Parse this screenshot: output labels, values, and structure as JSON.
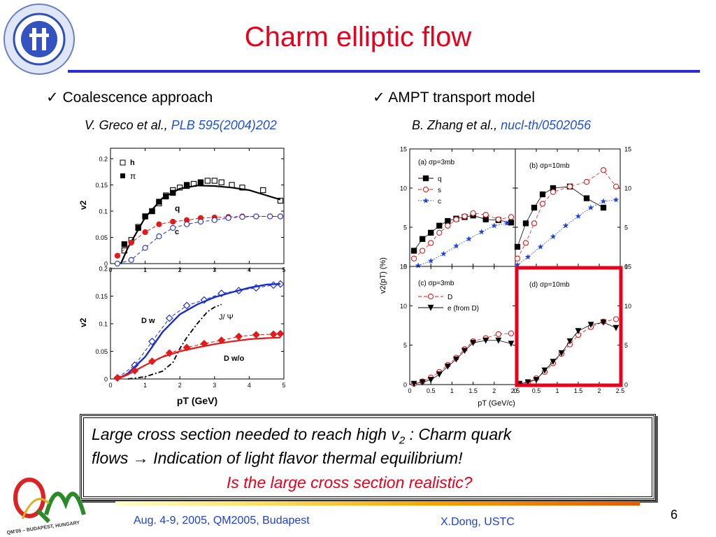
{
  "slide": {
    "title": "Charm elliptic flow",
    "page_number": "6",
    "left_bullet": "Coalescence approach",
    "left_cite_authors": "V. Greco et al., ",
    "left_cite_ref": "PLB 595(2004)202",
    "right_bullet": "AMPT transport model",
    "right_cite_authors": "B. Zhang et al., ",
    "right_cite_ref": "nucl-th/0502056",
    "conclusion_line1_a": "Large cross section needed to reach high v",
    "conclusion_line1_sub": "2",
    "conclusion_line1_b": " : Charm quark",
    "conclusion_line2": "flows → Indication of light flavor thermal equilibrium!",
    "conclusion_line3": "Is the large cross section realistic?",
    "footer_left": "Aug. 4-9, 2005, QM2005, Budapest",
    "footer_right": "X.Dong,  USTC",
    "qm_logo_text": "QM'05 – BUDAPEST, HUNGARY",
    "colors": {
      "title": "#e8001c",
      "rule": "#2b2bd8",
      "cite_link": "#1f4fe0",
      "highlight_box": "#e8001c",
      "footer_text": "#1f3fd0"
    }
  },
  "chart_data": [
    {
      "type": "line",
      "panel": "left-top",
      "xlabel": "",
      "ylabel": "v2",
      "xlim": [
        0,
        5
      ],
      "ylim": [
        0,
        0.22
      ],
      "x_ticks": [
        0,
        1,
        2,
        3,
        4,
        5
      ],
      "y_ticks": [
        0,
        0.05,
        0.1,
        0.15,
        0.2
      ],
      "legend": [
        "h",
        "π"
      ],
      "annotations": [
        "q",
        "c"
      ],
      "series": [
        {
          "name": "h",
          "style": "open-square",
          "x": [
            0.4,
            0.6,
            0.8,
            1.0,
            1.2,
            1.4,
            1.6,
            1.8,
            2.0,
            2.2,
            2.4,
            2.6,
            2.8,
            3.0,
            3.2,
            3.5,
            3.8,
            4.4,
            4.9
          ],
          "y": [
            0.025,
            0.045,
            0.07,
            0.09,
            0.1,
            0.115,
            0.13,
            0.14,
            0.145,
            0.148,
            0.152,
            0.155,
            0.158,
            0.158,
            0.155,
            0.15,
            0.145,
            0.14,
            0.12
          ]
        },
        {
          "name": "π",
          "style": "filled-square",
          "x": [
            0.4,
            0.8,
            1.0,
            1.2,
            1.4,
            1.6,
            1.8,
            2.2,
            2.6
          ],
          "y": [
            0.037,
            0.068,
            0.09,
            0.1,
            0.118,
            0.128,
            0.135,
            0.15,
            0.155
          ]
        },
        {
          "name": "q",
          "style": "solid-black",
          "x": [
            0.3,
            0.5,
            1.0,
            1.5,
            2.0,
            2.5,
            3.0,
            3.5,
            4.0,
            4.5,
            4.9
          ],
          "y": [
            0.0,
            0.03,
            0.088,
            0.125,
            0.143,
            0.149,
            0.148,
            0.145,
            0.14,
            0.13,
            0.122
          ]
        },
        {
          "name": "",
          "style": "red-dashed-filled-circle",
          "x": [
            0.2,
            0.6,
            1.0,
            1.4,
            1.8,
            2.2,
            2.6,
            3.0,
            3.4,
            3.8,
            4.2,
            4.6,
            4.9
          ],
          "y": [
            0.015,
            0.04,
            0.06,
            0.075,
            0.08,
            0.083,
            0.087,
            0.088,
            0.089,
            0.09,
            0.09,
            0.09,
            0.09
          ]
        },
        {
          "name": "c",
          "style": "blue-dashed-open-circle",
          "x": [
            0.2,
            0.6,
            1.0,
            1.4,
            1.8,
            2.2,
            2.6,
            3.0,
            3.4,
            3.8,
            4.2,
            4.6,
            4.9
          ],
          "y": [
            0.0,
            0.007,
            0.03,
            0.052,
            0.068,
            0.075,
            0.08,
            0.083,
            0.087,
            0.089,
            0.09,
            0.09,
            0.09
          ]
        }
      ]
    },
    {
      "type": "line",
      "panel": "left-bottom",
      "xlabel": "pT (GeV)",
      "ylabel": "v2",
      "xlim": [
        0,
        5
      ],
      "ylim": [
        0,
        0.2
      ],
      "x_ticks": [
        0,
        1,
        2,
        3,
        4,
        5
      ],
      "y_ticks": [
        0,
        0.05,
        0.1,
        0.15,
        0.2
      ],
      "annotations": [
        "D w",
        "J/ Ψ",
        "D w/o"
      ],
      "series": [
        {
          "name": "D w",
          "style": "blue-dashed-open-diamond",
          "x": [
            0.2,
            0.7,
            1.2,
            1.7,
            2.2,
            2.7,
            3.2,
            3.7,
            4.2,
            4.7,
            4.9
          ],
          "y": [
            0.002,
            0.025,
            0.068,
            0.11,
            0.133,
            0.143,
            0.155,
            0.16,
            0.165,
            0.17,
            0.172
          ]
        },
        {
          "name": "D w",
          "style": "blue-solid",
          "x": [
            0.2,
            0.5,
            1.0,
            1.5,
            2.0,
            2.5,
            3.0,
            3.5,
            4.0,
            4.5,
            4.9
          ],
          "y": [
            0.0,
            0.01,
            0.04,
            0.085,
            0.117,
            0.135,
            0.148,
            0.157,
            0.165,
            0.171,
            0.172
          ]
        },
        {
          "name": "J/ Ψ",
          "style": "black-dashdot",
          "x": [
            0.5,
            1.0,
            1.5,
            1.8,
            2.0,
            2.2,
            2.5,
            2.8,
            3.0,
            3.2
          ],
          "y": [
            0.0,
            0.004,
            0.014,
            0.03,
            0.055,
            0.075,
            0.1,
            0.122,
            0.13,
            0.135
          ]
        },
        {
          "name": "D w/o",
          "style": "red-dashed-filled-diamond",
          "x": [
            0.2,
            0.7,
            1.2,
            1.7,
            2.2,
            2.7,
            3.2,
            3.7,
            4.2,
            4.7,
            4.9
          ],
          "y": [
            0.002,
            0.015,
            0.032,
            0.047,
            0.057,
            0.064,
            0.07,
            0.077,
            0.08,
            0.081,
            0.082
          ]
        },
        {
          "name": "D w/o",
          "style": "red-solid",
          "x": [
            0.2,
            0.5,
            1.0,
            1.5,
            2.0,
            2.5,
            3.0,
            3.5,
            4.0,
            4.5,
            4.9
          ],
          "y": [
            0.0,
            0.008,
            0.025,
            0.04,
            0.05,
            0.057,
            0.063,
            0.068,
            0.072,
            0.074,
            0.075
          ]
        }
      ]
    },
    {
      "type": "line",
      "panel": "right-a",
      "xlabel": "",
      "ylabel": "v2(pT) (%)",
      "xlim": [
        0,
        2.5
      ],
      "ylim": [
        0,
        15
      ],
      "x_ticks": [
        0,
        0.5,
        1,
        1.5,
        2,
        2.5
      ],
      "y_ticks": [
        0,
        5,
        10,
        15
      ],
      "label": "(a) σp=3mb",
      "legend": [
        "q",
        "s",
        "c"
      ],
      "series": [
        {
          "name": "q",
          "style": "black-filled-square",
          "x": [
            0.1,
            0.3,
            0.5,
            0.7,
            0.9,
            1.1,
            1.3,
            1.5,
            1.8,
            2.1,
            2.4
          ],
          "y": [
            2.0,
            3.5,
            4.3,
            5.2,
            5.8,
            6.1,
            6.3,
            6.5,
            6.0,
            5.9,
            5.6
          ]
        },
        {
          "name": "s",
          "style": "red-dashed-open-circle",
          "x": [
            0.1,
            0.3,
            0.5,
            0.7,
            0.9,
            1.1,
            1.3,
            1.5,
            1.8,
            2.1,
            2.4
          ],
          "y": [
            1.0,
            2.0,
            3.0,
            4.3,
            5.2,
            6.0,
            6.4,
            6.8,
            6.6,
            6.0,
            6.3
          ]
        },
        {
          "name": "c",
          "style": "blue-dotted-filled-star",
          "x": [
            0.2,
            0.5,
            0.8,
            1.1,
            1.4,
            1.7,
            2.0,
            2.3
          ],
          "y": [
            0.1,
            0.7,
            1.6,
            2.6,
            3.5,
            4.4,
            5.2,
            5.5
          ]
        }
      ]
    },
    {
      "type": "line",
      "panel": "right-b",
      "xlabel": "",
      "ylabel": "",
      "xlim": [
        0,
        2.5
      ],
      "ylim": [
        0,
        15
      ],
      "x_ticks": [
        0,
        0.5,
        1,
        1.5,
        2,
        2.5
      ],
      "y_ticks": [
        0,
        5,
        10,
        15
      ],
      "label": "(b) σp=10mb",
      "series": [
        {
          "name": "q",
          "style": "black-filled-square",
          "x": [
            0.05,
            0.25,
            0.45,
            0.65,
            0.9,
            1.3,
            1.7,
            2.1
          ],
          "y": [
            2.5,
            5.5,
            7.5,
            9.2,
            10.0,
            10.2,
            8.7,
            7.5
          ]
        },
        {
          "name": "s",
          "style": "red-dashed-open-circle",
          "x": [
            0.05,
            0.25,
            0.45,
            0.65,
            0.9,
            1.3,
            1.7,
            2.1,
            2.4
          ],
          "y": [
            1.0,
            3.0,
            5.5,
            8.0,
            9.5,
            10.2,
            10.8,
            12.3,
            10.2
          ]
        },
        {
          "name": "c",
          "style": "blue-dotted-filled-star",
          "x": [
            0.05,
            0.3,
            0.6,
            0.9,
            1.2,
            1.5,
            1.8,
            2.1,
            2.4
          ],
          "y": [
            0.2,
            1.2,
            2.5,
            3.8,
            5.2,
            6.4,
            7.5,
            8.3,
            8.5
          ]
        }
      ]
    },
    {
      "type": "line",
      "panel": "right-c",
      "xlabel": "",
      "ylabel": "",
      "xlim": [
        0,
        2.5
      ],
      "ylim": [
        0,
        15
      ],
      "x_ticks": [
        0,
        0.5,
        1,
        1.5,
        2,
        2.5
      ],
      "y_ticks": [
        0,
        5,
        10,
        15
      ],
      "label": "(c) σp=3mb",
      "legend": [
        "D",
        "e (from D)"
      ],
      "series": [
        {
          "name": "D",
          "style": "red-dashed-open-circle",
          "x": [
            0.1,
            0.3,
            0.5,
            0.7,
            0.9,
            1.1,
            1.3,
            1.5,
            1.8,
            2.1,
            2.4
          ],
          "y": [
            0.1,
            0.4,
            0.9,
            1.6,
            2.5,
            3.4,
            4.5,
            5.5,
            5.9,
            6.4,
            6.5
          ]
        },
        {
          "name": "e (from D)",
          "style": "black-solid-filled-triangle",
          "x": [
            0.1,
            0.3,
            0.5,
            0.7,
            0.9,
            1.1,
            1.3,
            1.5,
            1.8,
            2.1,
            2.4
          ],
          "y": [
            0.1,
            0.3,
            0.6,
            1.3,
            2.3,
            3.2,
            4.3,
            5.3,
            5.6,
            5.6,
            5.2
          ]
        }
      ]
    },
    {
      "type": "line",
      "panel": "right-d",
      "xlabel": "pT (GeV/c)",
      "ylabel": "",
      "xlim": [
        0,
        2.5
      ],
      "ylim": [
        0,
        15
      ],
      "x_ticks": [
        0,
        0.5,
        1,
        1.5,
        2,
        2.5
      ],
      "y_ticks": [
        0,
        5,
        10,
        15
      ],
      "label": "(d) σp=10mb",
      "highlighted": true,
      "series": [
        {
          "name": "D",
          "style": "red-dashed-open-circle",
          "x": [
            0.1,
            0.3,
            0.5,
            0.7,
            0.9,
            1.1,
            1.3,
            1.5,
            1.8,
            2.1,
            2.4
          ],
          "y": [
            0.1,
            0.3,
            0.8,
            1.6,
            2.7,
            3.9,
            5.1,
            6.3,
            7.3,
            8.0,
            8.3
          ]
        },
        {
          "name": "e (from D)",
          "style": "black-solid-filled-triangle",
          "x": [
            0.1,
            0.3,
            0.5,
            0.7,
            0.9,
            1.1,
            1.3,
            1.5,
            1.8,
            2.1,
            2.4
          ],
          "y": [
            0.1,
            0.3,
            0.6,
            1.8,
            2.9,
            4.0,
            5.5,
            6.8,
            7.6,
            7.9,
            7.2
          ]
        }
      ]
    }
  ]
}
